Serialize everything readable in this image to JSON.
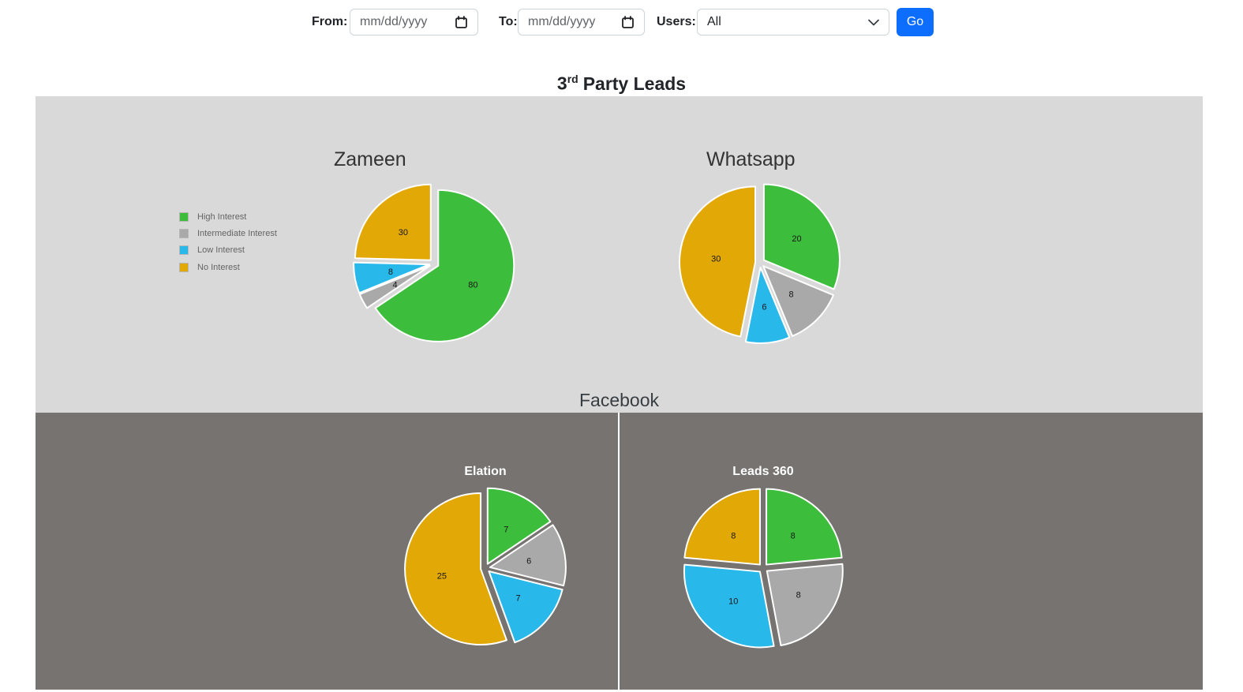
{
  "toolbar": {
    "from_label": "From:",
    "to_label": "To:",
    "users_label": "Users:",
    "date_placeholder": "mm/dd/yyyy",
    "users_value": "All",
    "go_label": "Go"
  },
  "page_title": {
    "base": "3",
    "sup": "rd",
    "rest": "Party Leads"
  },
  "panels": {
    "third_party_bg": "#d9d9d9",
    "facebook_bg": "#767370",
    "facebook_title": "Facebook"
  },
  "legend": {
    "position": "left-of-zameen-chart",
    "items": [
      {
        "label": "High Interest",
        "color": "#3cbe3c"
      },
      {
        "label": "Intermediate Interest",
        "color": "#a9a9a9"
      },
      {
        "label": "Low Interest",
        "color": "#29b8ea"
      },
      {
        "label": "No Interest",
        "color": "#e2a805"
      }
    ]
  },
  "chart_data": [
    {
      "type": "pie",
      "id": "zameen",
      "panel": "3rd Party Leads",
      "title": "Zameen",
      "categories": [
        "High Interest",
        "Intermediate Interest",
        "Low Interest",
        "No Interest"
      ],
      "values": [
        80,
        4,
        8,
        30
      ],
      "colors": [
        "#3cbe3c",
        "#a9a9a9",
        "#29b8ea",
        "#e2a805"
      ],
      "slice_labels": "values",
      "legend_visible": true,
      "exploded": true
    },
    {
      "type": "pie",
      "id": "whatsapp",
      "panel": "3rd Party Leads",
      "title": "Whatsapp",
      "categories": [
        "High Interest",
        "Intermediate Interest",
        "Low Interest",
        "No Interest"
      ],
      "values": [
        20,
        8,
        6,
        30
      ],
      "colors": [
        "#3cbe3c",
        "#a9a9a9",
        "#29b8ea",
        "#e2a805"
      ],
      "slice_labels": "values",
      "legend_visible": false,
      "exploded": true
    },
    {
      "type": "pie",
      "id": "elation",
      "panel": "Facebook",
      "title": "Elation",
      "categories": [
        "High Interest",
        "Intermediate Interest",
        "Low Interest",
        "No Interest"
      ],
      "values": [
        7,
        6,
        7,
        25
      ],
      "colors": [
        "#3cbe3c",
        "#a9a9a9",
        "#29b8ea",
        "#e2a805"
      ],
      "slice_labels": "values",
      "legend_visible": false,
      "exploded": true
    },
    {
      "type": "pie",
      "id": "leads360",
      "panel": "Facebook",
      "title": "Leads 360",
      "categories": [
        "High Interest",
        "Intermediate Interest",
        "Low Interest",
        "No Interest"
      ],
      "values": [
        8,
        8,
        10,
        8
      ],
      "colors": [
        "#3cbe3c",
        "#a9a9a9",
        "#29b8ea",
        "#e2a805"
      ],
      "slice_labels": "values",
      "legend_visible": false,
      "exploded": true
    }
  ]
}
